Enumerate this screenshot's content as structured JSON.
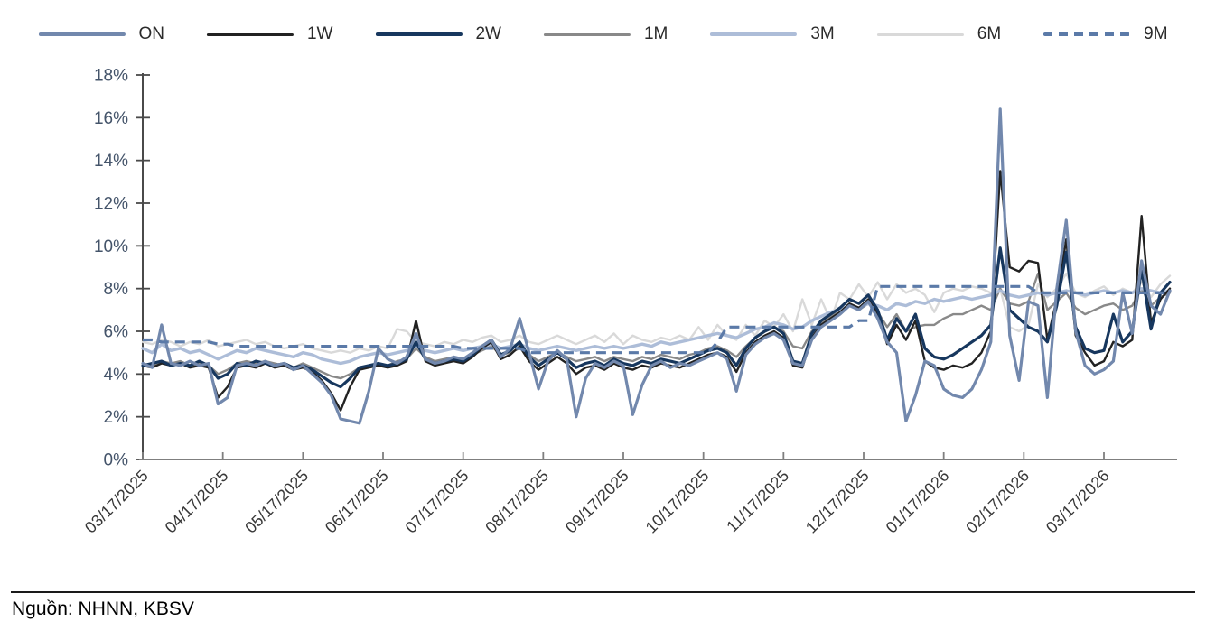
{
  "source_note": "Nguồn: NHNN, KBSV",
  "chart_data": {
    "type": "line",
    "title": "",
    "legend_position": "top",
    "grid": false,
    "x_axis": {
      "tick_labels": [
        "03/17/2025",
        "04/17/2025",
        "05/17/2025",
        "06/17/2025",
        "07/17/2025",
        "08/17/2025",
        "09/17/2025",
        "10/17/2025",
        "11/17/2025",
        "12/17/2025",
        "01/17/2026",
        "02/17/2026",
        "03/17/2026"
      ],
      "label_rotation_deg": 45
    },
    "y_axis": {
      "tick_labels": [
        "0%",
        "2%",
        "4%",
        "6%",
        "8%",
        "10%",
        "12%",
        "14%",
        "16%",
        "18%"
      ],
      "min": 0,
      "max": 18,
      "step": 2,
      "unit": "%"
    },
    "axis_colors": {
      "y_axis": "#4a4a4a",
      "x_axis": "#7f7f7f",
      "y_label": "#44546a",
      "x_label": "#383838"
    },
    "n_points": 110,
    "series": [
      {
        "name": "ON",
        "color": "#7288ad",
        "stroke_width": 3.2,
        "dashed": false,
        "values": [
          4.5,
          4.3,
          6.3,
          4.5,
          4.4,
          4.6,
          4.4,
          4.5,
          2.6,
          2.9,
          4.4,
          4.5,
          4.4,
          4.6,
          4.4,
          4.5,
          4.2,
          4.4,
          4.0,
          3.6,
          3.0,
          1.9,
          1.8,
          1.7,
          3.2,
          5.2,
          4.7,
          4.5,
          4.8,
          5.9,
          4.7,
          4.5,
          4.6,
          4.8,
          4.7,
          5.0,
          5.3,
          5.6,
          4.8,
          5.2,
          6.6,
          5.0,
          3.3,
          4.6,
          5.1,
          4.7,
          2.0,
          3.8,
          4.5,
          4.3,
          4.6,
          4.4,
          2.1,
          3.5,
          4.4,
          4.6,
          4.3,
          4.5,
          4.4,
          4.6,
          4.8,
          5.0,
          4.7,
          3.2,
          4.9,
          5.4,
          5.7,
          5.9,
          5.6,
          4.5,
          4.4,
          5.6,
          6.2,
          6.5,
          6.8,
          7.2,
          7.0,
          7.4,
          6.6,
          5.5,
          5.0,
          1.8,
          3.0,
          4.6,
          4.4,
          3.3,
          3.0,
          2.9,
          3.3,
          4.2,
          5.5,
          16.4,
          5.8,
          3.7,
          7.4,
          7.2,
          2.9,
          8.0,
          11.2,
          6.0,
          4.4,
          4.0,
          4.2,
          4.6,
          7.8,
          5.9,
          9.3,
          7.2,
          6.8,
          7.9
        ]
      },
      {
        "name": "1W",
        "color": "#222222",
        "stroke_width": 2.4,
        "dashed": false,
        "values": [
          4.4,
          4.3,
          4.5,
          4.4,
          4.5,
          4.3,
          4.4,
          4.3,
          2.9,
          3.4,
          4.3,
          4.4,
          4.3,
          4.5,
          4.3,
          4.4,
          4.2,
          4.3,
          4.1,
          3.7,
          3.1,
          2.3,
          3.4,
          4.2,
          4.3,
          4.4,
          4.3,
          4.4,
          4.6,
          6.5,
          4.6,
          4.4,
          4.5,
          4.6,
          4.5,
          4.8,
          5.2,
          5.5,
          4.7,
          4.9,
          5.3,
          4.6,
          4.2,
          4.5,
          4.8,
          4.5,
          4.0,
          4.3,
          4.4,
          4.2,
          4.5,
          4.3,
          4.2,
          4.4,
          4.3,
          4.5,
          4.4,
          4.3,
          4.5,
          4.7,
          4.9,
          5.0,
          4.8,
          4.1,
          5.0,
          5.5,
          5.8,
          6.0,
          5.7,
          4.4,
          4.3,
          5.7,
          6.3,
          6.6,
          6.9,
          7.3,
          7.1,
          7.5,
          6.8,
          5.4,
          6.3,
          5.6,
          6.5,
          4.6,
          4.3,
          4.2,
          4.4,
          4.3,
          4.5,
          5.0,
          6.0,
          13.5,
          9.0,
          8.8,
          9.3,
          9.2,
          5.6,
          7.5,
          10.3,
          5.8,
          5.0,
          4.4,
          4.6,
          5.5,
          5.3,
          5.6,
          11.4,
          6.4,
          7.5,
          8.0
        ]
      },
      {
        "name": "2W",
        "color": "#17375e",
        "stroke_width": 3.2,
        "dashed": false,
        "values": [
          4.4,
          4.5,
          4.6,
          4.4,
          4.5,
          4.4,
          4.6,
          4.4,
          3.8,
          4.0,
          4.5,
          4.4,
          4.6,
          4.5,
          4.4,
          4.5,
          4.3,
          4.4,
          4.2,
          3.9,
          3.6,
          3.4,
          3.8,
          4.3,
          4.4,
          4.5,
          4.4,
          4.5,
          4.7,
          5.5,
          4.7,
          4.5,
          4.6,
          4.7,
          4.6,
          4.9,
          5.3,
          5.6,
          4.9,
          5.1,
          5.5,
          4.8,
          4.4,
          4.7,
          5.0,
          4.7,
          4.3,
          4.5,
          4.6,
          4.4,
          4.7,
          4.5,
          4.4,
          4.6,
          4.5,
          4.7,
          4.6,
          4.5,
          4.7,
          4.9,
          5.1,
          5.2,
          5.0,
          4.4,
          5.2,
          5.7,
          6.0,
          6.2,
          5.9,
          4.6,
          4.5,
          5.9,
          6.5,
          6.8,
          7.1,
          7.5,
          7.3,
          7.7,
          7.0,
          5.6,
          6.6,
          6.0,
          6.8,
          5.2,
          4.8,
          4.7,
          4.9,
          5.2,
          5.5,
          5.8,
          6.3,
          9.9,
          7.0,
          6.6,
          6.2,
          6.0,
          5.5,
          7.2,
          9.7,
          6.2,
          5.2,
          5.0,
          5.1,
          6.8,
          5.5,
          6.0,
          8.9,
          6.1,
          7.8,
          8.3
        ]
      },
      {
        "name": "1M",
        "color": "#898989",
        "stroke_width": 2.4,
        "dashed": false,
        "values": [
          4.5,
          4.4,
          4.6,
          4.5,
          4.6,
          4.4,
          4.5,
          4.4,
          4.0,
          4.2,
          4.5,
          4.6,
          4.5,
          4.6,
          4.5,
          4.4,
          4.3,
          4.5,
          4.3,
          4.1,
          3.9,
          3.8,
          4.0,
          4.3,
          4.4,
          4.5,
          4.4,
          4.6,
          4.7,
          5.2,
          4.8,
          4.6,
          4.7,
          4.8,
          4.7,
          4.9,
          5.1,
          5.3,
          4.9,
          5.0,
          5.2,
          4.9,
          4.6,
          4.8,
          5.0,
          4.8,
          4.6,
          4.7,
          4.8,
          4.6,
          4.8,
          4.7,
          4.6,
          4.8,
          4.7,
          4.9,
          4.8,
          4.7,
          4.9,
          5.0,
          5.2,
          5.3,
          5.1,
          4.8,
          5.3,
          5.7,
          6.0,
          6.2,
          6.0,
          5.3,
          5.2,
          6.0,
          6.4,
          6.7,
          7.0,
          7.2,
          7.0,
          7.3,
          6.9,
          6.2,
          6.8,
          6.0,
          6.2,
          6.3,
          6.3,
          6.6,
          6.8,
          6.8,
          7.0,
          7.2,
          7.0,
          8.0,
          7.3,
          7.2,
          7.4,
          8.7,
          7.0,
          7.4,
          7.8,
          7.1,
          6.8,
          7.0,
          7.2,
          7.3,
          7.0,
          7.2,
          8.0,
          7.2,
          7.6,
          7.8
        ]
      },
      {
        "name": "3M",
        "color": "#adbdd8",
        "stroke_width": 3.4,
        "dashed": false,
        "values": [
          5.2,
          5.0,
          5.4,
          5.1,
          5.2,
          5.0,
          5.1,
          4.9,
          4.7,
          4.9,
          5.1,
          5.0,
          5.2,
          5.1,
          5.0,
          4.9,
          4.8,
          5.0,
          4.9,
          4.7,
          4.6,
          4.5,
          4.6,
          4.8,
          4.9,
          5.0,
          4.9,
          5.0,
          5.1,
          5.3,
          5.1,
          5.0,
          5.1,
          5.2,
          5.1,
          5.2,
          5.3,
          5.4,
          5.2,
          5.3,
          5.4,
          5.2,
          5.1,
          5.2,
          5.3,
          5.2,
          5.1,
          5.2,
          5.3,
          5.2,
          5.3,
          5.2,
          5.3,
          5.4,
          5.3,
          5.5,
          5.4,
          5.5,
          5.6,
          5.7,
          5.8,
          5.9,
          5.8,
          5.7,
          5.9,
          6.1,
          6.2,
          6.4,
          6.3,
          6.1,
          6.2,
          6.5,
          6.7,
          6.9,
          7.0,
          7.2,
          7.1,
          7.3,
          7.2,
          7.0,
          7.3,
          7.2,
          7.4,
          7.3,
          7.5,
          7.4,
          7.5,
          7.6,
          7.5,
          7.6,
          7.7,
          7.9,
          7.7,
          7.6,
          7.7,
          7.8,
          7.7,
          7.8,
          7.9,
          7.8,
          7.7,
          7.8,
          7.9,
          7.8,
          7.9,
          7.8,
          8.0,
          7.9,
          7.8,
          7.9
        ]
      },
      {
        "name": "6M",
        "color": "#d9d9d9",
        "stroke_width": 2.4,
        "dashed": false,
        "values": [
          5.5,
          5.4,
          5.6,
          5.5,
          5.3,
          5.5,
          5.4,
          5.6,
          5.3,
          5.4,
          5.5,
          5.6,
          5.4,
          5.5,
          5.3,
          5.2,
          5.3,
          5.4,
          5.2,
          5.1,
          5.0,
          5.1,
          5.0,
          5.2,
          5.1,
          5.3,
          5.2,
          6.1,
          6.0,
          5.5,
          5.4,
          5.3,
          5.5,
          5.4,
          5.6,
          5.5,
          5.7,
          5.8,
          5.5,
          5.6,
          5.8,
          5.5,
          5.4,
          5.6,
          5.8,
          5.6,
          5.4,
          5.6,
          5.8,
          5.5,
          5.9,
          5.4,
          5.8,
          5.6,
          5.5,
          5.7,
          5.6,
          5.8,
          5.6,
          6.2,
          5.6,
          6.3,
          5.8,
          5.6,
          6.3,
          5.8,
          6.5,
          6.2,
          6.8,
          6.0,
          7.5,
          6.3,
          7.5,
          6.5,
          7.8,
          7.5,
          8.2,
          7.6,
          8.3,
          7.5,
          8.2,
          7.8,
          8.0,
          7.7,
          6.9,
          7.8,
          8.0,
          7.9,
          8.1,
          8.0,
          7.8,
          8.0,
          6.2,
          6.0,
          6.3,
          8.2,
          7.6,
          8.0,
          8.7,
          7.8,
          7.6,
          7.9,
          8.1,
          7.7,
          8.0,
          7.8,
          8.3,
          7.6,
          8.2,
          8.6
        ]
      },
      {
        "name": "9M",
        "color": "#5b7aa8",
        "stroke_width": 3.2,
        "dashed": true,
        "values": [
          5.6,
          5.6,
          5.5,
          5.5,
          5.5,
          5.5,
          5.5,
          5.5,
          5.4,
          5.4,
          5.3,
          5.3,
          5.3,
          5.3,
          5.3,
          5.3,
          5.3,
          5.3,
          5.3,
          5.3,
          5.3,
          5.3,
          5.3,
          5.3,
          5.3,
          5.3,
          5.3,
          5.3,
          5.3,
          5.3,
          5.3,
          5.3,
          5.3,
          5.3,
          5.2,
          5.2,
          5.2,
          5.2,
          5.2,
          5.2,
          5.2,
          5.0,
          5.0,
          5.0,
          5.0,
          5.0,
          5.0,
          5.0,
          5.0,
          5.0,
          5.0,
          5.0,
          5.0,
          5.0,
          5.0,
          5.0,
          5.0,
          5.0,
          5.0,
          5.0,
          5.0,
          5.5,
          6.2,
          6.2,
          6.2,
          6.2,
          6.2,
          6.2,
          6.2,
          6.2,
          6.2,
          6.2,
          6.2,
          6.2,
          6.2,
          6.2,
          6.5,
          6.5,
          8.1,
          8.1,
          8.1,
          8.1,
          8.1,
          8.1,
          8.1,
          8.1,
          8.1,
          8.1,
          8.1,
          8.1,
          8.1,
          8.1,
          8.1,
          8.1,
          8.1,
          7.8,
          7.8,
          7.8,
          7.8,
          7.8,
          7.8,
          7.8,
          7.8,
          7.8,
          7.8,
          7.8,
          7.8,
          7.8,
          7.8,
          7.8
        ]
      }
    ]
  }
}
